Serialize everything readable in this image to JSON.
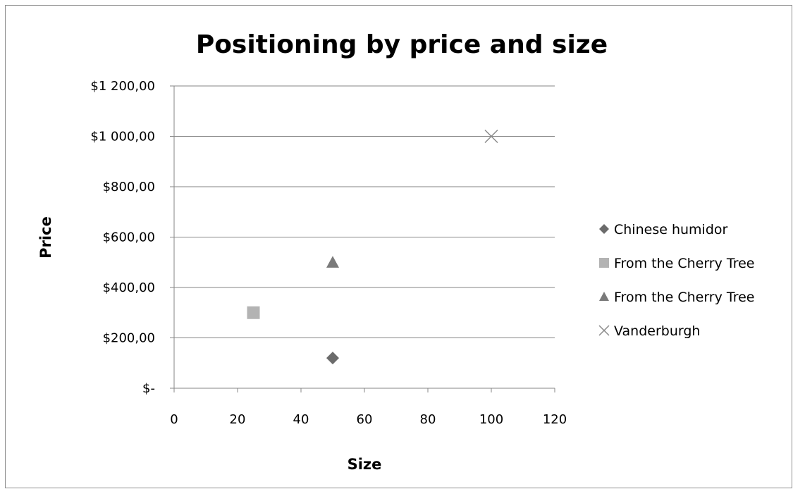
{
  "chart_data": {
    "type": "scatter",
    "title": "Positioning by price and size",
    "xlabel": "Size",
    "ylabel": "Price",
    "xlim": [
      0,
      120
    ],
    "ylim": [
      0,
      1200
    ],
    "x_ticks": [
      0,
      20,
      40,
      60,
      80,
      100,
      120
    ],
    "y_ticks": [
      0,
      200,
      400,
      600,
      800,
      1000,
      1200
    ],
    "y_tick_labels": [
      "$-",
      "$200,00",
      "$400,00",
      "$600,00",
      "$800,00",
      "$1 000,00",
      "$1 200,00"
    ],
    "grid": "horizontal",
    "legend_position": "right",
    "series": [
      {
        "name": "Chinese humidor",
        "marker": "diamond",
        "color": "#6b6b6b",
        "x": [
          50
        ],
        "y": [
          120
        ]
      },
      {
        "name": "From the Cherry Tree",
        "marker": "square",
        "color": "#b3b3b3",
        "x": [
          25
        ],
        "y": [
          300
        ]
      },
      {
        "name": "From the Cherry Tree",
        "marker": "triangle",
        "color": "#7a7a7a",
        "x": [
          50
        ],
        "y": [
          500
        ]
      },
      {
        "name": "Vanderburgh",
        "marker": "x",
        "color": "#8a8a8a",
        "x": [
          100
        ],
        "y": [
          1000
        ]
      }
    ]
  }
}
